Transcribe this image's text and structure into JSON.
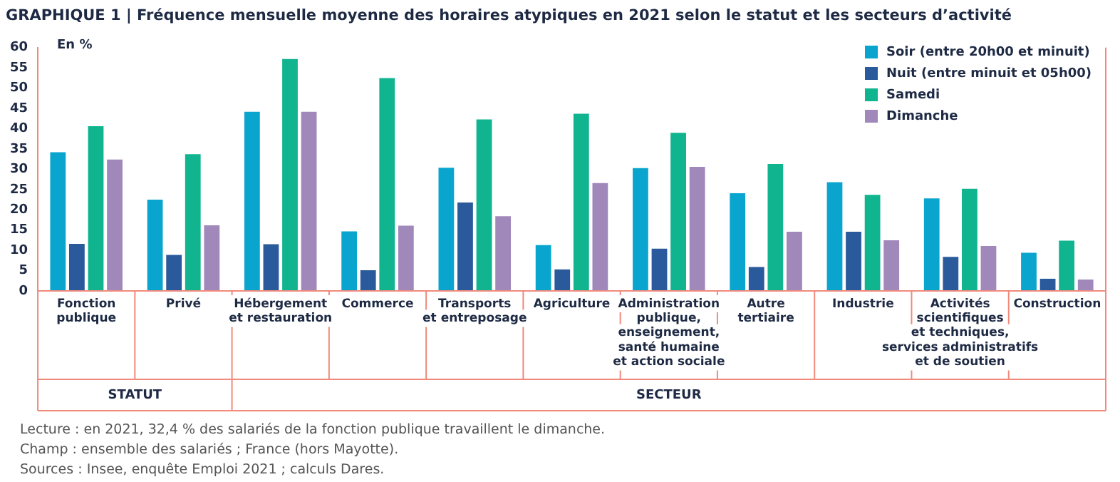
{
  "chart_data": {
    "type": "bar",
    "title": "GRAPHIQUE 1 | Fréquence mensuelle moyenne des horaires atypiques en 2021 selon le statut et les secteurs d’activité",
    "ylabel": "En %",
    "categories": [
      "Fonction\npublique",
      "Privé",
      "Hébergement\net restauration",
      "Commerce",
      "Transports\net entreposage",
      "Agriculture",
      "Administration\npublique,\nenseignement,\nsanté humaine\net action sociale",
      "Autre\ntertiaire",
      "Industrie",
      "Activités\nscientifiques\net techniques,\nservices administratifs\net de soutien",
      "Construction"
    ],
    "series": [
      {
        "name": "Soir (entre 20h00 et minuit)",
        "color": "#0aa5cf",
        "values": [
          34.2,
          22.5,
          44.2,
          14.7,
          30.4,
          11.3,
          30.3,
          24.1,
          26.8,
          22.8,
          9.4
        ]
      },
      {
        "name": "Nuit (entre minuit et 05h00)",
        "color": "#2a5a9b",
        "values": [
          11.6,
          8.9,
          11.5,
          5.1,
          21.8,
          5.3,
          10.4,
          5.9,
          14.6,
          8.4,
          3.0
        ]
      },
      {
        "name": "Samedi",
        "color": "#10b48f",
        "values": [
          40.6,
          33.7,
          57.2,
          52.5,
          42.3,
          43.7,
          39.0,
          31.3,
          23.7,
          25.2,
          12.4
        ]
      },
      {
        "name": "Dimanche",
        "color": "#a088bb",
        "values": [
          32.4,
          16.2,
          44.2,
          16.1,
          18.4,
          26.6,
          30.6,
          14.6,
          12.5,
          11.1,
          2.8
        ]
      }
    ],
    "ylim": [
      0,
      60
    ],
    "yticks": [
      0,
      5,
      10,
      15,
      20,
      25,
      30,
      35,
      40,
      45,
      50,
      55,
      60
    ],
    "grid": false,
    "legend": "top right",
    "annotations": [
      "STATUT",
      "SECTEUR",
      "Lecture : en 2021, 32,4 % des salariés de la fonction publique travaillent le dimanche.",
      "Champ : ensemble des salariés ; France (hors Mayotte).",
      "Sources : Insee, enquête Emploi 2021 ; calculs Dares."
    ]
  }
}
